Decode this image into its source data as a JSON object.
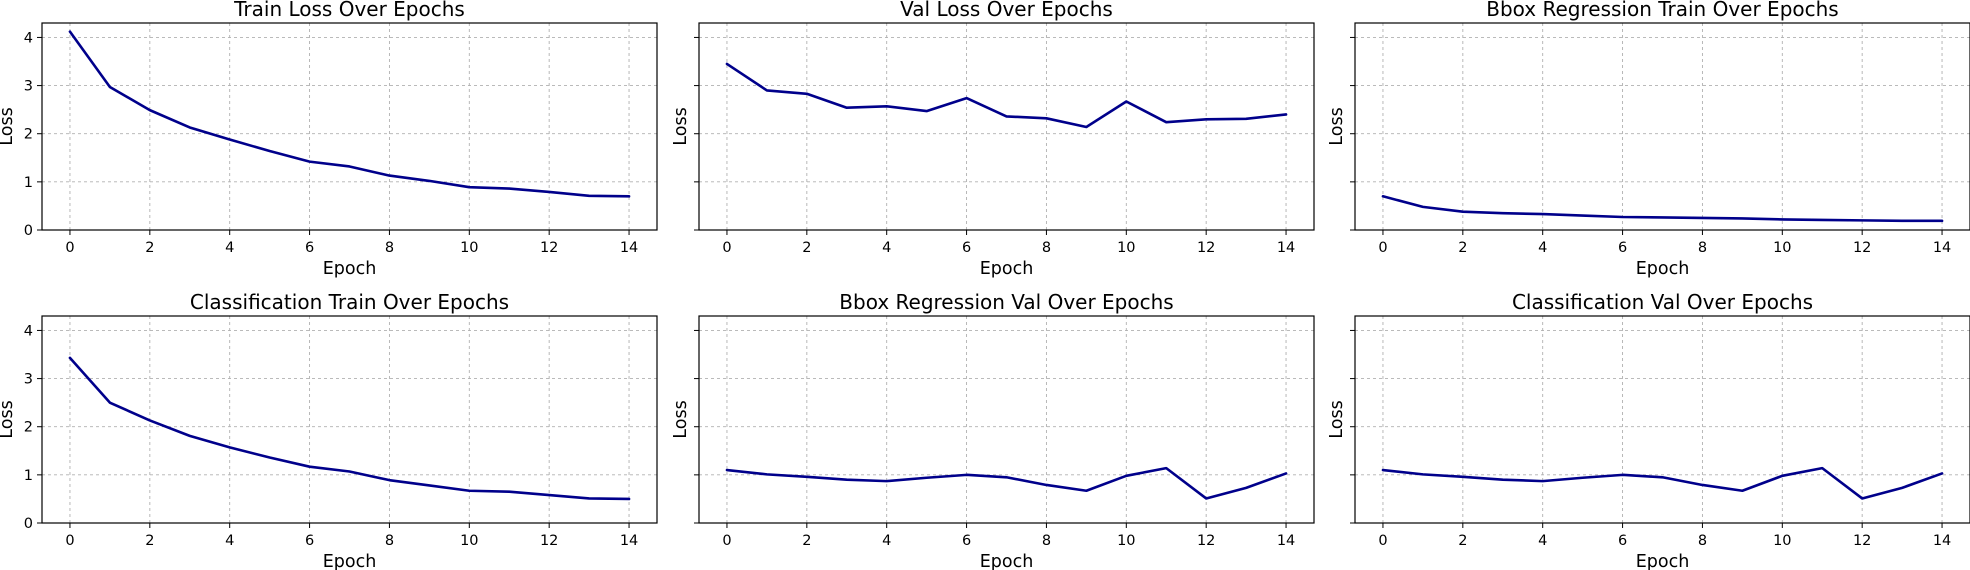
{
  "chart_data": [
    {
      "type": "line",
      "title": "Train Loss Over Epochs",
      "xlabel": "Epoch",
      "ylabel": "Loss",
      "x": [
        0,
        1,
        2,
        3,
        4,
        5,
        6,
        7,
        8,
        9,
        10,
        11,
        12,
        13,
        14
      ],
      "values": [
        4.12,
        2.97,
        2.49,
        2.13,
        1.88,
        1.64,
        1.42,
        1.32,
        1.13,
        1.02,
        0.89,
        0.86,
        0.79,
        0.71,
        0.7
      ],
      "xlim": [
        -0.7,
        14.7
      ],
      "ylim": [
        0,
        4.3
      ],
      "xticks": [
        0,
        2,
        4,
        6,
        8,
        10,
        12,
        14
      ],
      "yticks": [
        0,
        1,
        2,
        3,
        4
      ],
      "show_yticklabels": true,
      "grid": true,
      "color": "#00008b"
    },
    {
      "type": "line",
      "title": "Val Loss Over Epochs",
      "xlabel": "Epoch",
      "ylabel": "Loss",
      "x": [
        0,
        1,
        2,
        3,
        4,
        5,
        6,
        7,
        8,
        9,
        10,
        11,
        12,
        13,
        14
      ],
      "values": [
        3.45,
        2.9,
        2.83,
        2.54,
        2.57,
        2.47,
        2.74,
        2.36,
        2.32,
        2.14,
        2.67,
        2.24,
        2.3,
        2.31,
        2.4
      ],
      "xlim": [
        -0.7,
        14.7
      ],
      "ylim": [
        0,
        4.3
      ],
      "xticks": [
        0,
        2,
        4,
        6,
        8,
        10,
        12,
        14
      ],
      "yticks": [
        0,
        1,
        2,
        3,
        4
      ],
      "show_yticklabels": false,
      "grid": true,
      "color": "#00008b"
    },
    {
      "type": "line",
      "title": "Bbox Regression Train Over Epochs",
      "xlabel": "Epoch",
      "ylabel": "Loss",
      "x": [
        0,
        1,
        2,
        3,
        4,
        5,
        6,
        7,
        8,
        9,
        10,
        11,
        12,
        13,
        14
      ],
      "values": [
        0.7,
        0.48,
        0.38,
        0.35,
        0.33,
        0.3,
        0.27,
        0.26,
        0.25,
        0.24,
        0.22,
        0.21,
        0.2,
        0.19,
        0.19
      ],
      "xlim": [
        -0.7,
        14.7
      ],
      "ylim": [
        0,
        4.3
      ],
      "xticks": [
        0,
        2,
        4,
        6,
        8,
        10,
        12,
        14
      ],
      "yticks": [
        0,
        1,
        2,
        3,
        4
      ],
      "show_yticklabels": false,
      "grid": true,
      "color": "#00008b"
    },
    {
      "type": "line",
      "title": "Classification Train Over Epochs",
      "xlabel": "Epoch",
      "ylabel": "Loss",
      "x": [
        0,
        1,
        2,
        3,
        4,
        5,
        6,
        7,
        8,
        9,
        10,
        11,
        12,
        13,
        14
      ],
      "values": [
        3.43,
        2.5,
        2.13,
        1.81,
        1.57,
        1.36,
        1.17,
        1.07,
        0.89,
        0.78,
        0.67,
        0.65,
        0.58,
        0.51,
        0.5
      ],
      "xlim": [
        -0.7,
        14.7
      ],
      "ylim": [
        0,
        4.3
      ],
      "xticks": [
        0,
        2,
        4,
        6,
        8,
        10,
        12,
        14
      ],
      "yticks": [
        0,
        1,
        2,
        3,
        4
      ],
      "show_yticklabels": true,
      "grid": true,
      "color": "#00008b"
    },
    {
      "type": "line",
      "title": "Bbox Regression Val Over Epochs",
      "xlabel": "Epoch",
      "ylabel": "Loss",
      "x": [
        0,
        1,
        2,
        3,
        4,
        5,
        6,
        7,
        8,
        9,
        10,
        11,
        12,
        13,
        14
      ],
      "values": [
        1.1,
        1.01,
        0.96,
        0.9,
        0.87,
        0.94,
        1.0,
        0.95,
        0.79,
        0.67,
        0.98,
        1.14,
        0.51,
        0.73,
        1.03
      ],
      "xlim": [
        -0.7,
        14.7
      ],
      "ylim": [
        0,
        4.3
      ],
      "xticks": [
        0,
        2,
        4,
        6,
        8,
        10,
        12,
        14
      ],
      "yticks": [
        0,
        1,
        2,
        3,
        4
      ],
      "show_yticklabels": false,
      "grid": true,
      "color": "#00008b"
    },
    {
      "type": "line",
      "title": "Classification Val Over Epochs",
      "xlabel": "Epoch",
      "ylabel": "Loss",
      "x": [
        0,
        1,
        2,
        3,
        4,
        5,
        6,
        7,
        8,
        9,
        10,
        11,
        12,
        13,
        14
      ],
      "values": [
        1.1,
        1.01,
        0.96,
        0.9,
        0.87,
        0.94,
        1.0,
        0.95,
        0.79,
        0.67,
        0.98,
        1.14,
        0.51,
        0.73,
        1.03
      ],
      "xlim": [
        -0.7,
        14.7
      ],
      "ylim": [
        0,
        4.3
      ],
      "xticks": [
        0,
        2,
        4,
        6,
        8,
        10,
        12,
        14
      ],
      "yticks": [
        0,
        1,
        2,
        3,
        4
      ],
      "show_yticklabels": false,
      "grid": true,
      "color": "#00008b"
    }
  ]
}
